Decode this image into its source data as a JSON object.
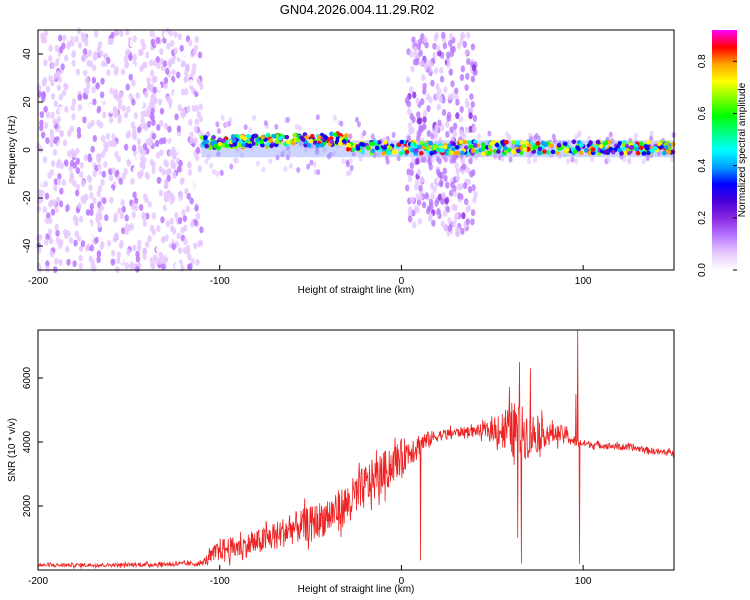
{
  "title": "GN04.2026.004.11.29.R02",
  "chart_data": [
    {
      "type": "heatmap",
      "name": "spectrogram",
      "xlabel": "Height of straight line (km)",
      "ylabel": "Frequency (Hz)",
      "xlim": [
        -200,
        150
      ],
      "ylim": [
        -50,
        50
      ],
      "xticks": [
        -200,
        -100,
        0,
        100
      ],
      "yticks": [
        -40,
        -20,
        0,
        20,
        40
      ],
      "colorbar": {
        "label": "Normalized spectral amplitude",
        "range": [
          0,
          0.92
        ],
        "ticks": [
          0.0,
          0.2,
          0.4,
          0.6,
          0.8
        ],
        "colors": [
          "#ffffff",
          "#e6c8ff",
          "#b877ff",
          "#8a2be2",
          "#4b00d9",
          "#0000ff",
          "#00a0ff",
          "#00ffff",
          "#00ff80",
          "#00ff00",
          "#80ff00",
          "#ffff00",
          "#ffa500",
          "#ff0000",
          "#ff00ff"
        ]
      },
      "regions": [
        {
          "desc": "noise",
          "x": [
            -200,
            -110
          ],
          "freq": [
            -50,
            50
          ],
          "amplitude": 0.07
        },
        {
          "desc": "carrier",
          "x": [
            -110,
            150
          ],
          "freq": [
            -3,
            5
          ],
          "amplitude": 0.5
        },
        {
          "desc": "scintillation burst",
          "x": [
            3,
            41
          ],
          "freq": [
            -35,
            48
          ],
          "amplitude": 0.1
        }
      ]
    },
    {
      "type": "line",
      "name": "snr",
      "xlabel": "Height of straight line (km)",
      "ylabel": "SNR (10 * v/v)",
      "xlim": [
        -200,
        150
      ],
      "ylim": [
        0,
        7500
      ],
      "xticks": [
        -200,
        -100,
        0,
        100
      ],
      "yticks": [
        2000,
        4000,
        6000
      ],
      "color": "#ee2222",
      "envelope": {
        "x": [
          -200,
          -150,
          -110,
          -100,
          -90,
          -80,
          -70,
          -60,
          -50,
          -40,
          -30,
          -20,
          -10,
          0,
          10,
          20,
          30,
          40,
          50,
          60,
          70,
          80,
          90,
          95,
          100,
          110,
          120,
          130,
          140,
          150
        ],
        "y": [
          150,
          160,
          200,
          650,
          700,
          850,
          1050,
          1300,
          1450,
          1700,
          2050,
          2600,
          3050,
          3550,
          3950,
          4200,
          4300,
          4350,
          4350,
          4400,
          4250,
          4250,
          4250,
          4000,
          3950,
          3900,
          3850,
          3800,
          3700,
          3650
        ],
        "amp": [
          60,
          60,
          80,
          350,
          350,
          400,
          450,
          500,
          550,
          600,
          650,
          700,
          650,
          550,
          350,
          180,
          150,
          150,
          300,
          900,
          800,
          350,
          250,
          150,
          120,
          100,
          100,
          100,
          100,
          100
        ]
      },
      "spikes": [
        {
          "x": 10.5,
          "y": 300
        },
        {
          "x": 64,
          "y": 1000
        },
        {
          "x": 65,
          "y": 6500
        },
        {
          "x": 66,
          "y": 200
        },
        {
          "x": 71,
          "y": 6300
        },
        {
          "x": 97,
          "y": 7500
        },
        {
          "x": 98,
          "y": 200
        },
        {
          "x": 96,
          "y": 5500
        }
      ]
    }
  ]
}
